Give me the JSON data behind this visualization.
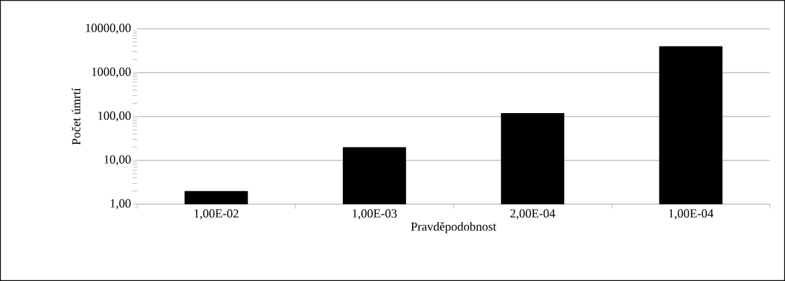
{
  "chart_data": {
    "type": "bar",
    "xlabel": "Pravděpodobnost",
    "ylabel": "Počet úmrtí",
    "categories": [
      "1,00E-02",
      "1,00E-03",
      "2,00E-04",
      "1,00E-04"
    ],
    "values": [
      2,
      20,
      120,
      4000
    ],
    "color": "#000000",
    "log": true,
    "grid": "y",
    "ylim": [
      1,
      10000
    ],
    "yticks": [
      {
        "value": 1,
        "label": "1,00"
      },
      {
        "value": 10,
        "label": "10,00"
      },
      {
        "value": 100,
        "label": "100,00"
      },
      {
        "value": 1000,
        "label": "1000,00"
      },
      {
        "value": 10000,
        "label": "10000,00"
      }
    ]
  }
}
